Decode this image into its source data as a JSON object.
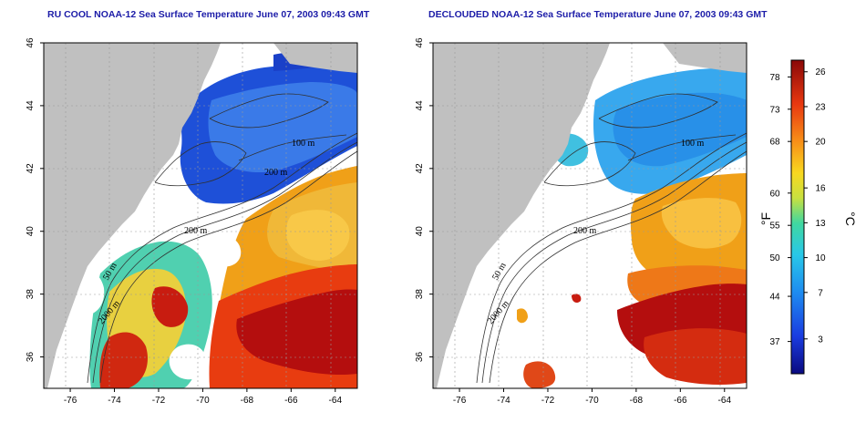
{
  "titles": {
    "left": "RU COOL NOAA-12 Sea Surface Temperature June 07, 2003 09:43 GMT",
    "right": "DECLOUDED NOAA-12 Sea Surface Temperature June 07, 2003 09:43 GMT"
  },
  "axes": {
    "lon_range": [
      -77.2,
      -63
    ],
    "lat_range": [
      35,
      46
    ],
    "lon_ticks": [
      -76,
      -74,
      -72,
      -70,
      -68,
      -66,
      -64
    ],
    "lat_ticks": [
      36,
      38,
      40,
      42,
      44,
      46
    ],
    "lon_tick_labels": [
      "-76",
      "-74",
      "-72",
      "-70",
      "-68",
      "-66",
      "-64"
    ],
    "lat_tick_labels": [
      "36",
      "38",
      "40",
      "42",
      "44",
      "46"
    ]
  },
  "isobath_labels": {
    "l100": "100 m",
    "l200": "200 m",
    "l50": "50 m",
    "l2000": "2000 m"
  },
  "colorbar": {
    "fahrenheit_ticks": [
      78,
      73,
      68,
      60,
      55,
      50,
      44,
      37
    ],
    "celsius_ticks": [
      26,
      23,
      20,
      16,
      13,
      10,
      7,
      3
    ],
    "fahrenheit_labels": [
      "78",
      "73",
      "68",
      "60",
      "55",
      "50",
      "44",
      "37"
    ],
    "celsius_labels": [
      "26",
      "23",
      "20",
      "16",
      "13",
      "10",
      "7",
      "3"
    ],
    "celsius_range": [
      0,
      27
    ],
    "fahrenheit_unit": "°F",
    "celsius_unit": "°C"
  },
  "colors": {
    "land": "#c0c0c0",
    "cloud": "#ffffff",
    "title": "#1c1ca8",
    "cold": "#1e50d8",
    "cool": "#38a8ee",
    "mild": "#40c8c0",
    "warm": "#f0a018",
    "hot": "#e83c10",
    "very_hot": "#b40e0e"
  }
}
